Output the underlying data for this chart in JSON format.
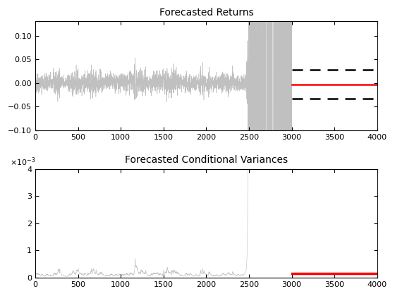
{
  "title1": "Forecasted Returns",
  "title2": "Forecasted Conditional Variances",
  "n_historical": 3000,
  "n_forecast": 1000,
  "xlim": [
    0,
    4000
  ],
  "ylim1": [
    -0.1,
    0.13
  ],
  "ylim2": [
    0,
    0.004
  ],
  "yticks1": [
    -0.1,
    -0.05,
    0.0,
    0.05,
    0.1
  ],
  "yticks2": [
    0,
    1,
    2,
    3,
    4
  ],
  "xticks": [
    0,
    500,
    1000,
    1500,
    2000,
    2500,
    3000,
    3500,
    4000
  ],
  "forecast_start": 3000,
  "red_return": -0.003,
  "upper_ci": 0.028,
  "lower_ci": -0.034,
  "red_variance": 0.00015,
  "line_color_hist": "#c0c0c0",
  "line_color_red": "#ff0000",
  "line_color_dashed": "#000000",
  "background_color": "#ffffff",
  "seed": 42,
  "figsize": [
    5.6,
    4.2
  ],
  "dpi": 100
}
